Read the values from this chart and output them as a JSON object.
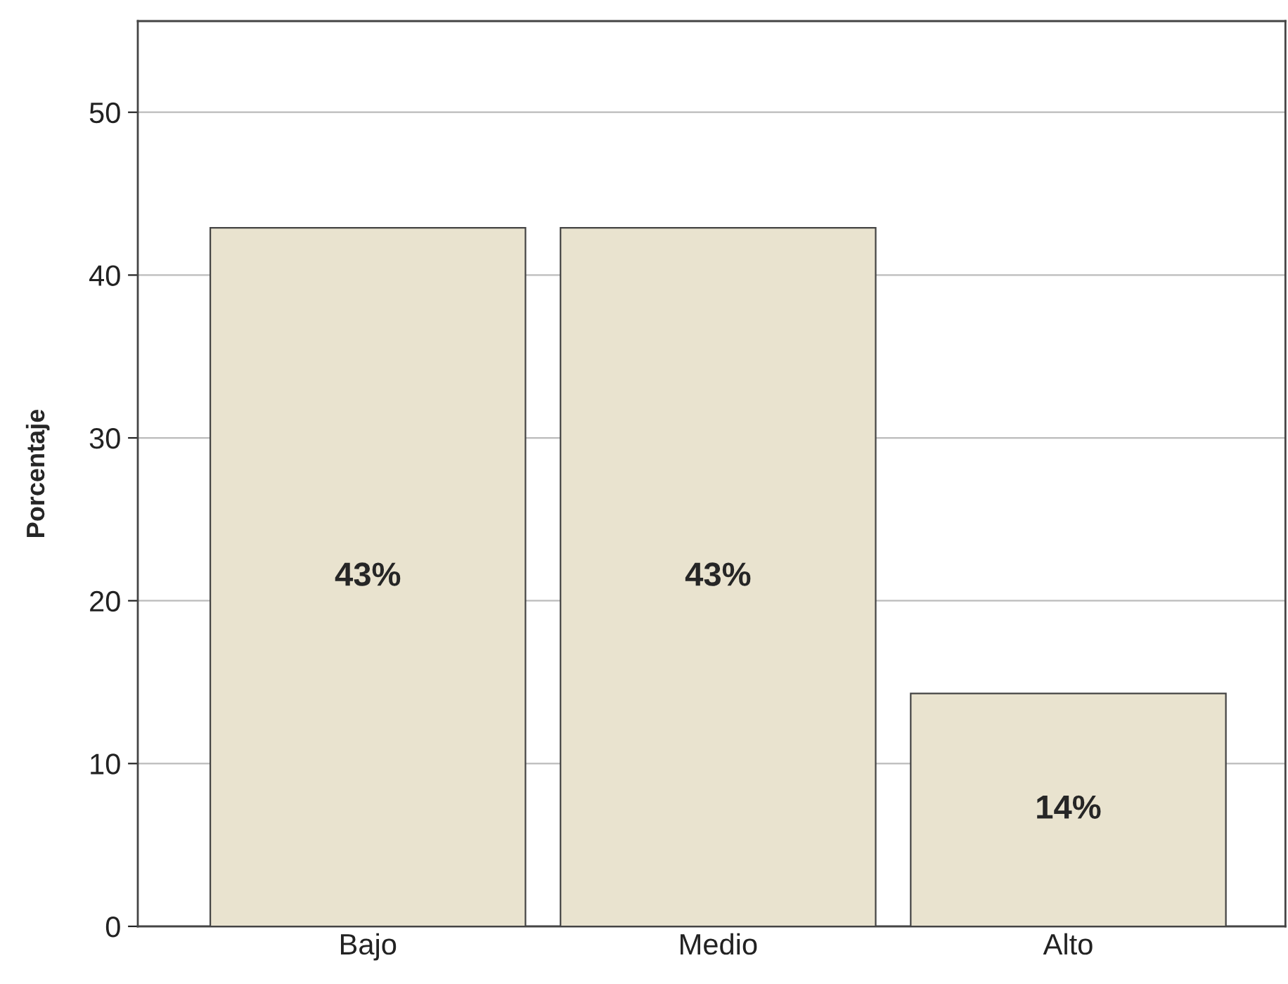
{
  "chart_data": {
    "type": "bar",
    "ylabel": "Porcentaje",
    "categories": [
      "Bajo",
      "Medio",
      "Alto"
    ],
    "values": [
      42.9,
      42.9,
      14.3
    ],
    "value_labels": [
      "43%",
      "43%",
      "14%"
    ],
    "color": "#e9e3cf",
    "ylim": [
      0,
      55.6
    ],
    "yticks": [
      0,
      10,
      20,
      30,
      40,
      50
    ],
    "grid": "y",
    "legend": false
  }
}
